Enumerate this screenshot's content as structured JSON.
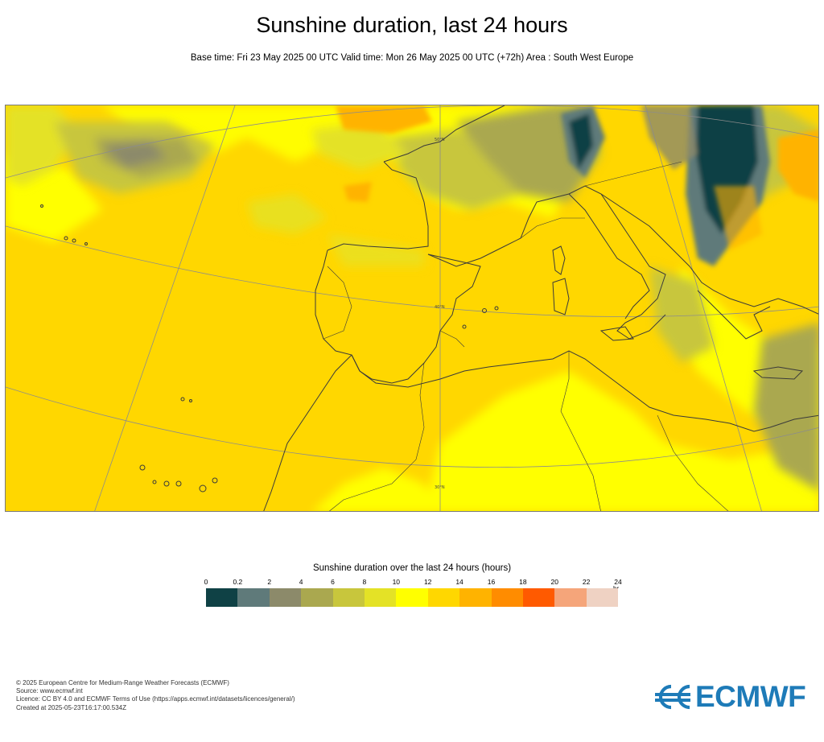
{
  "header": {
    "title": "Sunshine duration, last 24 hours",
    "subtitle": "Base time: Fri 23 May 2025 00 UTC Valid time: Mon 26 May 2025 00 UTC (+72h) Area : South West Europe"
  },
  "map": {
    "graticule_labels": [
      "50°N",
      "40°N",
      "30°N"
    ],
    "colors": {
      "land_sea_base": "#ffd700",
      "sahara_yellow": "#ffff00",
      "coastline": "#3a3a3a",
      "graticule": "#8c8c8c"
    }
  },
  "legend": {
    "title": "Sunshine duration over the last 24 hours (hours)",
    "unit": "hr",
    "ticks": [
      "0",
      "0.2",
      "2",
      "4",
      "6",
      "8",
      "10",
      "12",
      "14",
      "16",
      "18",
      "20",
      "22",
      "24"
    ],
    "colors": [
      "#0f4145",
      "#5f7a7a",
      "#8c8a6a",
      "#aaa84f",
      "#c8c63c",
      "#e4e226",
      "#ffff00",
      "#ffd700",
      "#ffb300",
      "#ff8c00",
      "#ff5a00",
      "#f5a57a",
      "#efd2c3"
    ]
  },
  "footer": {
    "lines": [
      "© 2025 European Centre for Medium-Range Weather Forecasts (ECMWF)",
      "Source: www.ecmwf.int",
      "Licence: CC BY 4.0 and ECMWF Terms of Use (https://apps.ecmwf.int/datasets/licences/general/)",
      "Created at 2025-05-23T16:17:00.534Z"
    ]
  },
  "logo": {
    "text": "ECMWF",
    "color": "#1e7bb8"
  }
}
